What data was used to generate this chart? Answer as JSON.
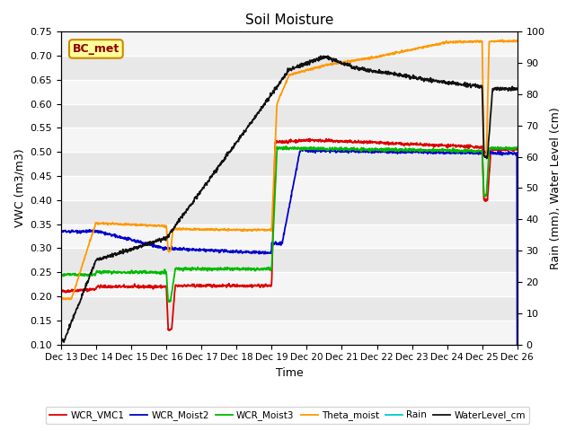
{
  "title": "Soil Moisture",
  "xlabel": "Time",
  "ylabel_left": "VWC (m3/m3)",
  "ylabel_right": "Rain (mm), Water Level (cm)",
  "annotation": "BC_met",
  "ylim_left": [
    0.1,
    0.75
  ],
  "ylim_right": [
    0,
    100
  ],
  "yticks_left": [
    0.1,
    0.15,
    0.2,
    0.25,
    0.3,
    0.35,
    0.4,
    0.45,
    0.5,
    0.55,
    0.6,
    0.65,
    0.7,
    0.75
  ],
  "yticks_right": [
    0,
    10,
    20,
    30,
    40,
    50,
    60,
    70,
    80,
    90,
    100
  ],
  "xtick_labels": [
    "Dec 13",
    "Dec 14",
    "Dec 15",
    "Dec 16",
    "Dec 17",
    "Dec 18",
    "Dec 19",
    "Dec 20",
    "Dec 21",
    "Dec 22",
    "Dec 23",
    "Dec 24",
    "Dec 25",
    "Dec 26"
  ],
  "colors": {
    "WCR_VMC1": "#dd0000",
    "WCR_Moist2": "#0000cc",
    "WCR_Moist3": "#00bb00",
    "Theta_moist": "#ff9900",
    "Rain": "#00cccc",
    "WaterLevel_cm": "#111111"
  },
  "legend_labels": [
    "WCR_VMC1",
    "WCR_Moist2",
    "WCR_Moist3",
    "Theta_moist",
    "Rain",
    "WaterLevel_cm"
  ],
  "bg_color": "#ffffff",
  "plot_bg_color": "#e8e8e8",
  "grid_color": "#ffffff",
  "band_color1": "#e8e8e8",
  "band_color2": "#f5f5f5"
}
